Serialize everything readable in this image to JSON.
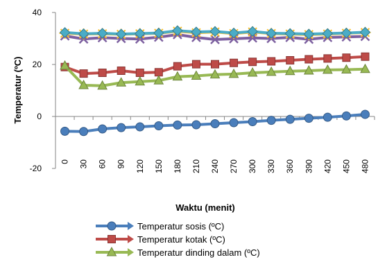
{
  "chart_data": {
    "type": "line",
    "title": "",
    "xlabel": "Waktu (menit)",
    "ylabel": "Temperatur (ºC)",
    "ylim": [
      -20,
      40
    ],
    "yticks": [
      -20,
      0,
      20,
      40
    ],
    "grid": false,
    "legend_position": "bottom",
    "categories": [
      "0",
      "30",
      "60",
      "90",
      "120",
      "150",
      "180",
      "210",
      "240",
      "270",
      "300",
      "330",
      "360",
      "390",
      "420",
      "450",
      "480"
    ],
    "series": [
      {
        "name": "Temperatur sosis (ºC)",
        "color": "#4a7ebb",
        "marker": "circle",
        "values": [
          -5.7,
          -5.8,
          -4.8,
          -4.3,
          -4.0,
          -3.6,
          -3.3,
          -3.2,
          -2.8,
          -2.4,
          -2.0,
          -1.5,
          -1.1,
          -0.7,
          -0.3,
          0.2,
          0.8
        ]
      },
      {
        "name": "Temperatur kotak (ºC)",
        "color": "#be4b48",
        "marker": "square",
        "values": [
          19.0,
          16.5,
          16.8,
          17.6,
          16.8,
          17.0,
          19.3,
          20.1,
          20.1,
          20.6,
          21.0,
          21.2,
          21.6,
          22.0,
          22.3,
          22.6,
          23.0
        ]
      },
      {
        "name": "Temperatur dinding dalam (ºC)",
        "color": "#98b954",
        "marker": "triangle",
        "values": [
          19.5,
          12.0,
          11.8,
          13.0,
          13.4,
          13.8,
          15.3,
          15.6,
          16.1,
          16.3,
          16.8,
          17.1,
          17.4,
          17.6,
          17.9,
          18.0,
          18.2
        ]
      },
      {
        "name": "",
        "color": "#7d60a0",
        "marker": "x",
        "values": [
          31.0,
          29.8,
          30.3,
          30.0,
          29.8,
          30.5,
          31.5,
          30.4,
          29.6,
          29.9,
          30.2,
          30.0,
          30.4,
          29.7,
          30.4,
          30.6,
          30.8
        ]
      },
      {
        "name": "",
        "color": "#f9c12e",
        "marker": "star",
        "values": [
          32.0,
          31.7,
          31.8,
          31.6,
          31.8,
          32.0,
          32.8,
          32.2,
          32.5,
          31.9,
          32.5,
          31.9,
          31.7,
          31.5,
          31.7,
          32.0,
          32.3
        ]
      },
      {
        "name": "",
        "color": "#4bacc6",
        "marker": "diamond",
        "values": [
          32.3,
          31.8,
          32.0,
          31.7,
          31.9,
          32.1,
          33.0,
          32.5,
          32.7,
          32.1,
          32.7,
          32.0,
          31.9,
          31.7,
          31.9,
          32.1,
          32.4
        ]
      }
    ]
  }
}
